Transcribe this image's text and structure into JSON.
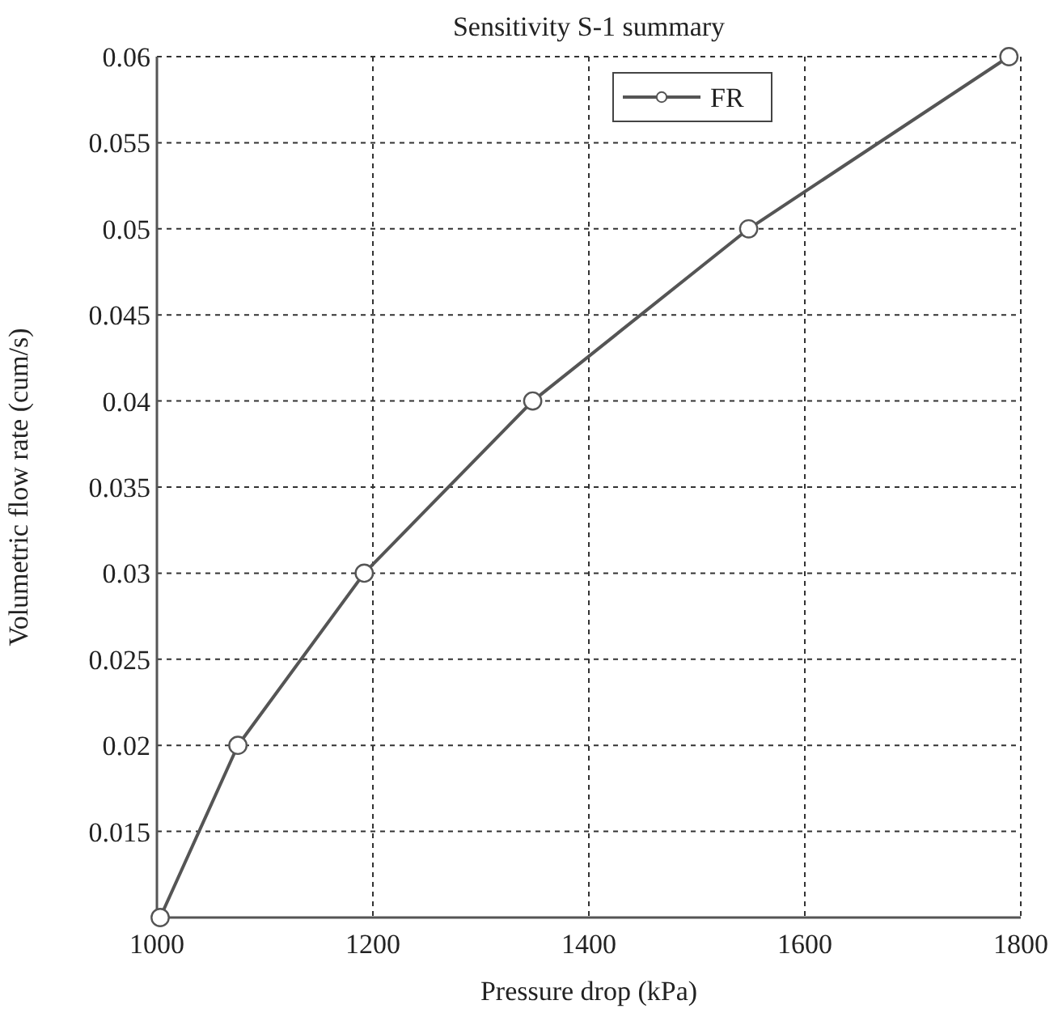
{
  "chart_data": {
    "type": "line",
    "title": "Sensitivity S-1 summary",
    "xlabel": "Pressure drop (kPa)",
    "ylabel": "Volumetric flow rate (cum/s)",
    "x": [
      1003,
      1075,
      1192,
      1348,
      1548,
      1789
    ],
    "series": [
      {
        "name": "FR",
        "color": "#555555",
        "values": [
          0.01,
          0.02,
          0.03,
          0.04,
          0.05,
          0.06
        ]
      }
    ],
    "xlim": [
      1000,
      1800
    ],
    "xticks": [
      1000,
      1200,
      1400,
      1600,
      1800
    ],
    "ylim": [
      0.01,
      0.06
    ],
    "yticks": [
      0.015,
      0.02,
      0.025,
      0.03,
      0.035,
      0.04,
      0.045,
      0.05,
      0.055,
      0.06
    ],
    "grid": true,
    "legend": "top right",
    "marker": "circle",
    "line_style": "solid"
  }
}
